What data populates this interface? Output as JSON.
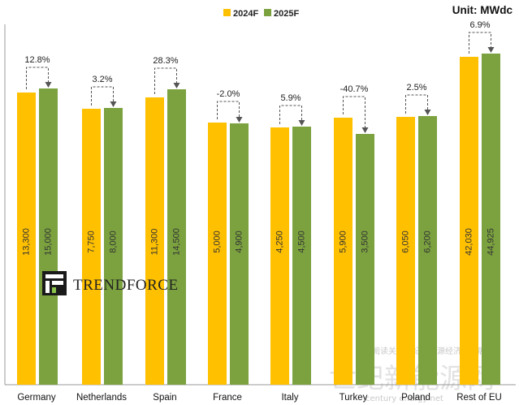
{
  "colors": {
    "series_2024": "#FFC000",
    "series_2025": "#7BA23F",
    "axis": "#999999",
    "connector": "#555555"
  },
  "legend": {
    "items": [
      "2024F",
      "2025F"
    ],
    "placement": "top"
  },
  "unit_label": "Unit: MWdc",
  "brand": {
    "name": "TRENDFORCE",
    "icon": "trendforce-logo-icon"
  },
  "watermarks": {
    "chinese_big": "世纪新能源网",
    "chinese_small": "阅读关注世纪新能源经济与发展",
    "english_small": "century  energy  net"
  },
  "chart_data": {
    "type": "bar",
    "title": "",
    "xlabel": "",
    "ylabel": "",
    "unit": "Unit: MWdc",
    "ylim": [
      0,
      48000
    ],
    "grid": false,
    "legend_placement": "top",
    "categories": [
      "Germany",
      "Netherlands",
      "Spain",
      "France",
      "Italy",
      "Turkey",
      "Poland",
      "Rest of EU"
    ],
    "series": [
      {
        "name": "2024F",
        "values": [
          13300,
          7750,
          11300,
          5000,
          4250,
          5900,
          6050,
          42030
        ],
        "labels": [
          "13,300",
          "7,750",
          "11,300",
          "5,000",
          "4,250",
          "5,900",
          "6,050",
          "42,030"
        ]
      },
      {
        "name": "2025F",
        "values": [
          15000,
          8000,
          14500,
          4900,
          4500,
          3500,
          6200,
          44925
        ],
        "labels": [
          "15,000",
          "8,000",
          "14,500",
          "4,900",
          "4,500",
          "3,500",
          "6,200",
          "44,925"
        ]
      }
    ],
    "growth": [
      "12.8%",
      "3.2%",
      "28.3%",
      "-2.0%",
      "5.9%",
      "-40.7%",
      "2.5%",
      "6.9%"
    ],
    "display_heights_note": "visual"
  }
}
